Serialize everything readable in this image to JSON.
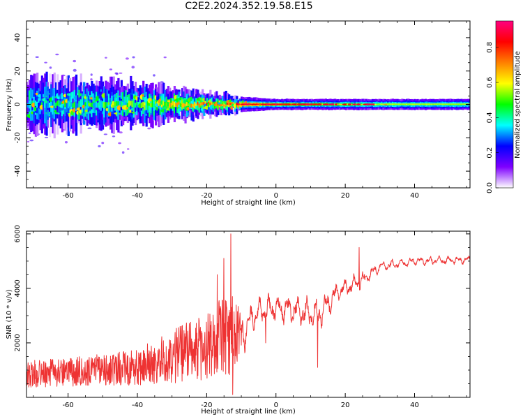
{
  "page": {
    "title": "C2E2.2024.352.19.58.E15"
  },
  "chart_data": [
    {
      "type": "heatmap",
      "name": "spectrogram",
      "xlabel": "Height of straight line (km)",
      "ylabel": "Frequency (Hz)",
      "xlim": [
        -72,
        56
      ],
      "ylim": [
        -50,
        50
      ],
      "xticks": [
        -60,
        -40,
        -20,
        0,
        20,
        40
      ],
      "xtick_labels": [
        "-60",
        "-40",
        "-20",
        "0",
        "20",
        "40"
      ],
      "yticks": [
        -40,
        -20,
        0,
        20,
        40
      ],
      "ytick_labels": [
        "-40",
        "-20",
        "0",
        "20",
        "40"
      ],
      "grid": false,
      "colorbar": {
        "label": "Normalized spectral amplitude",
        "range": [
          0,
          0.95
        ],
        "ticks": [
          0.0,
          0.2,
          0.4,
          0.6,
          0.8
        ],
        "tick_labels": [
          "0.0",
          "0.2",
          "0.4",
          "0.6",
          "0.8"
        ],
        "colormap": "rainbow",
        "colors": [
          "#ffffff",
          "#7f00ff",
          "#0000ff",
          "#00ffff",
          "#00ff00",
          "#ffff00",
          "#ff8000",
          "#ff0000",
          "#ff0080"
        ]
      },
      "ridge": {
        "center_freq": 0,
        "half_width_by_height": [
          {
            "x": -70,
            "hw": 9
          },
          {
            "x": -40,
            "hw": 7
          },
          {
            "x": -20,
            "hw": 4
          },
          {
            "x": -10,
            "hw": 2.5
          },
          {
            "x": 0,
            "hw": 1.8
          },
          {
            "x": 55,
            "hw": 1.8
          }
        ],
        "peak_amplitude_by_height": [
          {
            "x": -70,
            "amp": 0.35
          },
          {
            "x": -40,
            "amp": 0.45
          },
          {
            "x": -10,
            "amp": 0.85
          },
          {
            "x": 10,
            "amp": 0.7
          },
          {
            "x": 30,
            "amp": 0.55
          },
          {
            "x": 55,
            "amp": 0.5
          }
        ]
      }
    },
    {
      "type": "line",
      "name": "snr",
      "xlabel": "Height of straight line (km)",
      "ylabel": "SNR (10 * v/v)",
      "xlim": [
        -72,
        56
      ],
      "ylim": [
        0,
        6100
      ],
      "xticks": [
        -60,
        -40,
        -20,
        0,
        20,
        40
      ],
      "xtick_labels": [
        "-60",
        "-40",
        "-20",
        "0",
        "20",
        "40"
      ],
      "yticks": [
        2000,
        4000,
        6000
      ],
      "ytick_labels": [
        "2000",
        "4000",
        "6000"
      ],
      "grid": false,
      "line_color": "#ee3333",
      "trend": [
        {
          "x": -72,
          "mean": 700,
          "spread": 450
        },
        {
          "x": -55,
          "mean": 800,
          "spread": 500
        },
        {
          "x": -40,
          "mean": 900,
          "spread": 600
        },
        {
          "x": -30,
          "mean": 1200,
          "spread": 900
        },
        {
          "x": -20,
          "mean": 1500,
          "spread": 1100
        },
        {
          "x": -14,
          "mean": 1800,
          "spread": 1500
        },
        {
          "x": -10,
          "mean": 2200,
          "spread": 800
        },
        {
          "x": -6,
          "mean": 3100,
          "spread": 500
        },
        {
          "x": 0,
          "mean": 3300,
          "spread": 500
        },
        {
          "x": 5,
          "mean": 3200,
          "spread": 550
        },
        {
          "x": 12,
          "mean": 3000,
          "spread": 600
        },
        {
          "x": 18,
          "mean": 3900,
          "spread": 350
        },
        {
          "x": 25,
          "mean": 4300,
          "spread": 300
        },
        {
          "x": 30,
          "mean": 4800,
          "spread": 200
        },
        {
          "x": 40,
          "mean": 5000,
          "spread": 150
        },
        {
          "x": 56,
          "mean": 5050,
          "spread": 150
        }
      ],
      "features": [
        {
          "x": -13,
          "y": 6000
        },
        {
          "x": -12.5,
          "y": 100
        },
        {
          "x": -15,
          "y": 5100
        },
        {
          "x": -17,
          "y": 4500
        },
        {
          "x": 12,
          "y": 1100
        },
        {
          "x": 24,
          "y": 5500
        },
        {
          "x": -3,
          "y": 2000
        }
      ]
    }
  ]
}
